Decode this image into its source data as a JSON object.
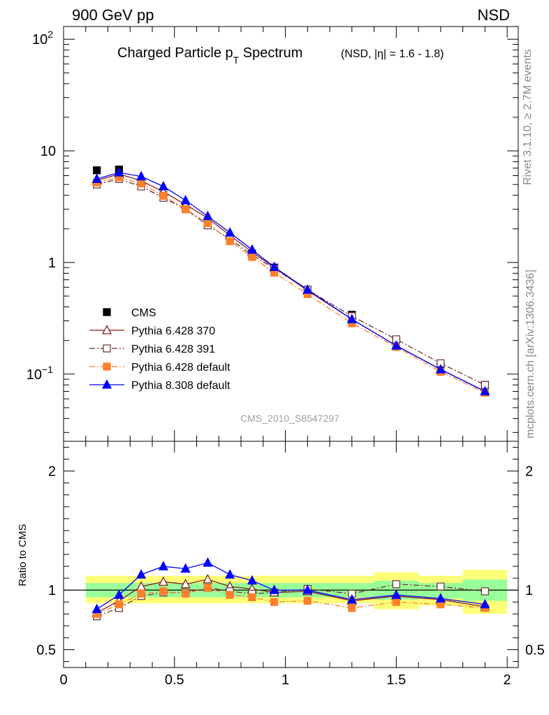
{
  "header": {
    "left": "900 GeV pp",
    "right": "NSD"
  },
  "side_labels": {
    "rivet": "Rivet 3.1.10, ≥ 2.7M events",
    "mcplots": "mcplots.cern.ch [arXiv:1306.3436]"
  },
  "watermark": "CMS_2010_S8547297",
  "chart_data": [
    {
      "type": "scatter",
      "title_main": "Charged Particle p",
      "title_sub": "T",
      "title_tail": " Spectrum",
      "title_small": "(NSD, |η| = 1.6 - 1.8)",
      "yscale": "log",
      "xlim": [
        0,
        2.05
      ],
      "ylim": [
        0.025,
        130
      ],
      "y_ticks": [
        {
          "v": 0.1,
          "label": "10",
          "exp": "−1"
        },
        {
          "v": 1,
          "label": "1",
          "exp": ""
        },
        {
          "v": 10,
          "label": "10",
          "exp": ""
        },
        {
          "v": 100,
          "label": "10",
          "exp": "2"
        }
      ],
      "legend_position": "left, below curves",
      "x": [
        0.15,
        0.25,
        0.35,
        0.45,
        0.55,
        0.65,
        0.75,
        0.85,
        0.95,
        1.1,
        1.3,
        1.5,
        1.7,
        1.9
      ],
      "series": [
        {
          "name": "CMS",
          "color": "#000000",
          "marker": "square-filled",
          "dash": "none",
          "values": [
            6.7,
            6.8,
            5.2,
            4.0,
            3.1,
            2.2,
            1.65,
            1.2,
            0.9,
            0.57,
            0.34,
            0.195,
            0.12,
            0.08
          ]
        },
        {
          "name": "Pythia 6.428 370",
          "color": "#8b1a1a",
          "marker": "triangle-open",
          "dash": "solid",
          "values": [
            5.4,
            6.2,
            5.4,
            4.3,
            3.3,
            2.5,
            1.75,
            1.24,
            0.9,
            0.56,
            0.31,
            0.18,
            0.11,
            0.07
          ]
        },
        {
          "name": "Pythia 6.428 391",
          "color": "#6b3030",
          "marker": "square-open",
          "dash": "dash-dot",
          "values": [
            5.0,
            5.6,
            4.8,
            3.8,
            3.0,
            2.15,
            1.62,
            1.17,
            0.88,
            0.57,
            0.33,
            0.205,
            0.125,
            0.08
          ]
        },
        {
          "name": "Pythia 6.428 default",
          "color": "#ff7f2a",
          "marker": "square-filled",
          "dash": "dash-dot",
          "values": [
            5.2,
            5.8,
            5.1,
            3.96,
            3.0,
            2.25,
            1.55,
            1.12,
            0.81,
            0.52,
            0.285,
            0.175,
            0.105,
            0.068
          ]
        },
        {
          "name": "Pythia 8.308 default",
          "color": "#0000ff",
          "marker": "triangle-filled",
          "dash": "solid",
          "values": [
            5.6,
            6.4,
            5.9,
            4.8,
            3.6,
            2.6,
            1.85,
            1.3,
            0.91,
            0.57,
            0.31,
            0.18,
            0.11,
            0.07
          ]
        }
      ]
    },
    {
      "type": "line",
      "ylabel": "Ratio to CMS",
      "ylim": [
        0.35,
        2.25
      ],
      "xlim": [
        0,
        2.05
      ],
      "y_ticks": [
        0.5,
        1,
        2
      ],
      "y_tick_labels": [
        "0.5",
        "1",
        "2"
      ],
      "x_ticks": [
        0,
        0.5,
        1,
        1.5,
        2
      ],
      "x_tick_labels": [
        "0",
        "0.5",
        "1",
        "1.5",
        "2"
      ],
      "x": [
        0.15,
        0.25,
        0.35,
        0.45,
        0.55,
        0.65,
        0.75,
        0.85,
        0.95,
        1.1,
        1.3,
        1.5,
        1.7,
        1.9
      ],
      "bands": {
        "yellow": {
          "color": "#ffff77",
          "bins": [
            {
              "x0": 0.1,
              "x1": 0.2,
              "lo": 0.89,
              "hi": 1.12
            },
            {
              "x0": 0.2,
              "x1": 1.4,
              "lo": 0.89,
              "hi": 1.12
            },
            {
              "x0": 1.4,
              "x1": 1.6,
              "lo": 0.84,
              "hi": 1.15
            },
            {
              "x0": 1.6,
              "x1": 1.8,
              "lo": 0.87,
              "hi": 1.12
            },
            {
              "x0": 1.8,
              "x1": 2.0,
              "lo": 0.8,
              "hi": 1.17
            }
          ]
        },
        "green": {
          "color": "#99ff99",
          "bins": [
            {
              "x0": 0.1,
              "x1": 0.2,
              "lo": 0.94,
              "hi": 1.06
            },
            {
              "x0": 0.2,
              "x1": 1.4,
              "lo": 0.94,
              "hi": 1.06
            },
            {
              "x0": 1.4,
              "x1": 1.6,
              "lo": 0.92,
              "hi": 1.08
            },
            {
              "x0": 1.6,
              "x1": 1.8,
              "lo": 0.93,
              "hi": 1.06
            },
            {
              "x0": 1.8,
              "x1": 2.0,
              "lo": 0.91,
              "hi": 1.09
            }
          ]
        }
      },
      "series": [
        {
          "name": "Pythia 6.428 370",
          "color": "#8b1a1a",
          "marker": "triangle-open",
          "dash": "solid",
          "values": [
            0.81,
            0.91,
            1.03,
            1.07,
            1.05,
            1.09,
            1.03,
            1.01,
            0.98,
            0.99,
            0.91,
            0.95,
            0.92,
            0.86
          ]
        },
        {
          "name": "Pythia 6.428 391",
          "color": "#6b3030",
          "marker": "square-open",
          "dash": "dash-dot",
          "values": [
            0.78,
            0.85,
            0.95,
            0.98,
            0.98,
            1.02,
            0.99,
            0.97,
            0.98,
            1.01,
            0.97,
            1.05,
            1.03,
            0.99
          ]
        },
        {
          "name": "Pythia 6.428 default",
          "color": "#ff7f2a",
          "marker": "square-filled",
          "dash": "dash-dot",
          "values": [
            0.8,
            0.88,
            0.97,
            0.99,
            0.97,
            1.02,
            0.96,
            0.94,
            0.9,
            0.91,
            0.85,
            0.9,
            0.88,
            0.85
          ]
        },
        {
          "name": "Pythia 8.308 default",
          "color": "#0000ff",
          "marker": "triangle-filled",
          "dash": "solid",
          "values": [
            0.84,
            0.96,
            1.13,
            1.2,
            1.18,
            1.23,
            1.13,
            1.08,
            1.0,
            1.0,
            0.92,
            0.96,
            0.93,
            0.88
          ]
        }
      ]
    }
  ]
}
